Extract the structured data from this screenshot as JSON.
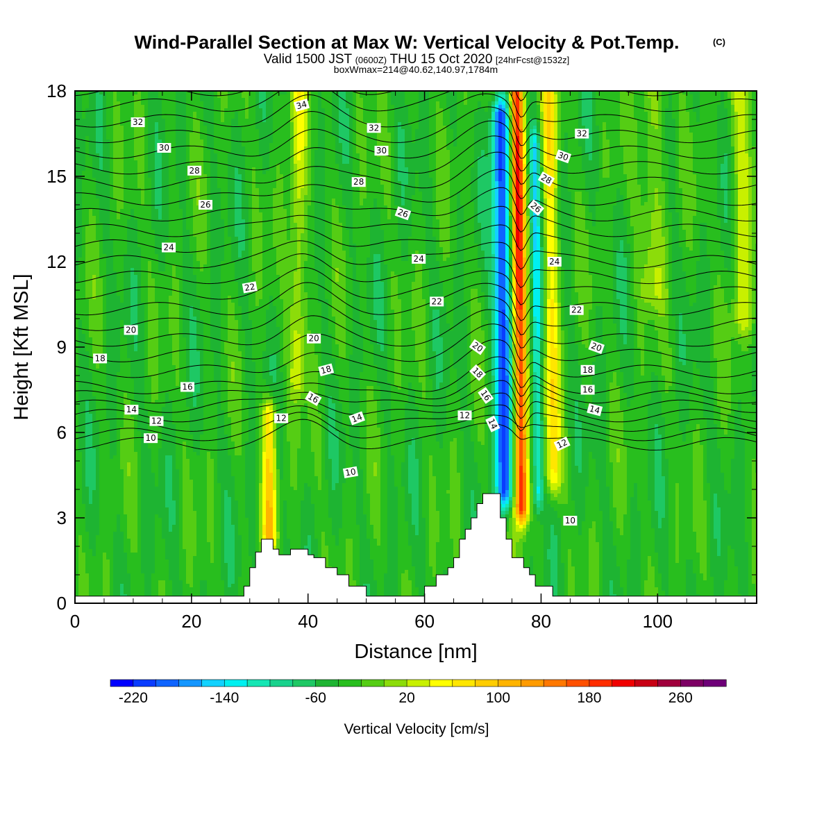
{
  "title": {
    "main": "Wind-Parallel Section at Max W: Vertical Velocity & Pot.Temp.",
    "copyright": "(C)",
    "line2_a": "Valid 1500 JST",
    "line2_b": "(0600Z)",
    "line2_c": "THU 15 Oct 2020",
    "line2_d": "[24hrFcst@1532z]",
    "line3": "boxWmax=214@40.62,140.97,1784m"
  },
  "chart_data": {
    "type": "heatmap",
    "xlabel": "Distance [nm]",
    "ylabel": "Height [Kft MSL]",
    "xlim": [
      0,
      117
    ],
    "ylim": [
      0,
      18
    ],
    "x_ticks": [
      0,
      20,
      40,
      60,
      80,
      100
    ],
    "y_ticks": [
      0,
      3,
      6,
      9,
      12,
      15,
      18
    ],
    "fill_field": "Vertical Velocity [cm/s]",
    "contour_field": "Potential Temperature",
    "colorbar": {
      "title": "Vertical Velocity [cm/s]",
      "tick_values": [
        -220,
        -140,
        -60,
        20,
        100,
        180,
        260
      ],
      "levels": [
        -240,
        -220,
        -200,
        -180,
        -160,
        -140,
        -120,
        -100,
        -80,
        -60,
        -40,
        -20,
        0,
        20,
        40,
        60,
        80,
        100,
        120,
        140,
        160,
        180,
        200,
        220,
        240,
        260,
        280,
        300
      ],
      "colors": [
        "#0000ff",
        "#0a3cff",
        "#0f64ff",
        "#1496ff",
        "#12d2ff",
        "#00f0f0",
        "#15e6b4",
        "#18d28c",
        "#1ec864",
        "#1eb432",
        "#28be1e",
        "#55cd14",
        "#8cdc0a",
        "#c8f000",
        "#ffff00",
        "#ffe600",
        "#ffcd00",
        "#ffb400",
        "#ff9b00",
        "#ff7800",
        "#ff5000",
        "#ff2d00",
        "#f00000",
        "#c80014",
        "#a0003c",
        "#7d0064",
        "#6e0078"
      ]
    },
    "background_value": -35,
    "features": [
      {
        "type": "updraft",
        "x": 76.3,
        "width": 0.8,
        "y_from": 3.5,
        "y_to": 18,
        "peak": 234
      },
      {
        "type": "downdraft",
        "x": 73.4,
        "width": 1.0,
        "y_from": 4.0,
        "y_to": 17,
        "peak": -180
      },
      {
        "type": "updraft",
        "x": 81.8,
        "width": 0.9,
        "y_from": 4.5,
        "y_to": 18,
        "peak": 100
      },
      {
        "type": "downdraft",
        "x": 79.2,
        "width": 0.6,
        "y_from": 4.0,
        "y_to": 16,
        "peak": -100
      },
      {
        "type": "updraft",
        "x": 38.3,
        "width": 1.0,
        "y_from": 8,
        "y_to": 18,
        "peak": 70
      },
      {
        "type": "updraft",
        "x": 33.4,
        "width": 0.9,
        "y_from": 2.5,
        "y_to": 6.5,
        "peak": 120
      },
      {
        "type": "updraft",
        "x": 99.1,
        "width": 1.6,
        "y_from": 11,
        "y_to": 18,
        "peak": 45
      },
      {
        "type": "updraft",
        "x": 114.7,
        "width": 1.3,
        "y_from": 10,
        "y_to": 18,
        "peak": 60
      }
    ],
    "terrain": [
      [
        0,
        0.25
      ],
      [
        29,
        0.25
      ],
      [
        29,
        0.6
      ],
      [
        30,
        0.6
      ],
      [
        30,
        1.25
      ],
      [
        31,
        1.25
      ],
      [
        31,
        1.8
      ],
      [
        32,
        1.8
      ],
      [
        32,
        2.25
      ],
      [
        34,
        2.25
      ],
      [
        34,
        1.9
      ],
      [
        35,
        1.9
      ],
      [
        35,
        1.7
      ],
      [
        37,
        1.7
      ],
      [
        37,
        1.9
      ],
      [
        40,
        1.9
      ],
      [
        40,
        1.7
      ],
      [
        41,
        1.7
      ],
      [
        41,
        1.6
      ],
      [
        43,
        1.6
      ],
      [
        43,
        1.25
      ],
      [
        45,
        1.25
      ],
      [
        45,
        1.0
      ],
      [
        47,
        1.0
      ],
      [
        47,
        0.6
      ],
      [
        50,
        0.6
      ],
      [
        50,
        0.25
      ],
      [
        60,
        0.25
      ],
      [
        60,
        0.6
      ],
      [
        62,
        0.6
      ],
      [
        62,
        1.0
      ],
      [
        64,
        1.0
      ],
      [
        64,
        1.25
      ],
      [
        65,
        1.25
      ],
      [
        65,
        1.6
      ],
      [
        66,
        1.6
      ],
      [
        66,
        2.25
      ],
      [
        67,
        2.25
      ],
      [
        67,
        2.6
      ],
      [
        68,
        2.6
      ],
      [
        68,
        3.0
      ],
      [
        69,
        3.0
      ],
      [
        69,
        3.5
      ],
      [
        70,
        3.5
      ],
      [
        70,
        3.85
      ],
      [
        73,
        3.85
      ],
      [
        73,
        3.0
      ],
      [
        74,
        3.0
      ],
      [
        74,
        2.25
      ],
      [
        75,
        2.25
      ],
      [
        75,
        1.6
      ],
      [
        77,
        1.6
      ],
      [
        77,
        1.25
      ],
      [
        78,
        1.25
      ],
      [
        78,
        1.0
      ],
      [
        79,
        1.0
      ],
      [
        79,
        0.6
      ],
      [
        82,
        0.6
      ],
      [
        82,
        0.25
      ],
      [
        117,
        0.25
      ]
    ],
    "theta_contours": {
      "levels": [
        10,
        11,
        12,
        13,
        14,
        15,
        16,
        17,
        18,
        19,
        20,
        21,
        22,
        23,
        24,
        25,
        26,
        27,
        28,
        29,
        30,
        31,
        32,
        33,
        34,
        35
      ],
      "labeled_levels": [
        10,
        12,
        14,
        16,
        18,
        20,
        22,
        24,
        26,
        28,
        30,
        32,
        34
      ]
    },
    "contour_labels": [
      {
        "text": "34",
        "x": 38.9,
        "y": 17.5,
        "rot": -15
      },
      {
        "text": "32",
        "x": 10.8,
        "y": 16.9,
        "rot": 0
      },
      {
        "text": "30",
        "x": 15.3,
        "y": 16.0,
        "rot": 0
      },
      {
        "text": "28",
        "x": 20.5,
        "y": 15.2,
        "rot": 0
      },
      {
        "text": "26",
        "x": 22.4,
        "y": 14.0,
        "rot": 0
      },
      {
        "text": "24",
        "x": 16.1,
        "y": 12.5,
        "rot": 0
      },
      {
        "text": "22",
        "x": 30.0,
        "y": 11.1,
        "rot": -10
      },
      {
        "text": "20",
        "x": 9.6,
        "y": 9.6,
        "rot": 0
      },
      {
        "text": "18",
        "x": 4.3,
        "y": 8.6,
        "rot": 0
      },
      {
        "text": "16",
        "x": 19.3,
        "y": 7.6,
        "rot": 0
      },
      {
        "text": "14",
        "x": 9.7,
        "y": 6.8,
        "rot": 0
      },
      {
        "text": "12",
        "x": 14.0,
        "y": 6.4,
        "rot": 0
      },
      {
        "text": "10",
        "x": 13.0,
        "y": 5.8,
        "rot": 0
      },
      {
        "text": "32",
        "x": 51.3,
        "y": 16.7,
        "rot": 0
      },
      {
        "text": "30",
        "x": 52.6,
        "y": 15.9,
        "rot": 0
      },
      {
        "text": "28",
        "x": 48.7,
        "y": 14.8,
        "rot": 0
      },
      {
        "text": "26",
        "x": 56.3,
        "y": 13.7,
        "rot": 20
      },
      {
        "text": "24",
        "x": 59.0,
        "y": 12.1,
        "rot": 0
      },
      {
        "text": "22",
        "x": 62.1,
        "y": 10.6,
        "rot": 0
      },
      {
        "text": "20",
        "x": 41.0,
        "y": 9.3,
        "rot": 0
      },
      {
        "text": "18",
        "x": 43.1,
        "y": 8.2,
        "rot": -15
      },
      {
        "text": "16",
        "x": 40.9,
        "y": 7.2,
        "rot": 30
      },
      {
        "text": "14",
        "x": 48.4,
        "y": 6.5,
        "rot": -20
      },
      {
        "text": "12",
        "x": 35.4,
        "y": 6.5,
        "rot": 0
      },
      {
        "text": "12",
        "x": 66.9,
        "y": 6.6,
        "rot": 0
      },
      {
        "text": "10",
        "x": 47.3,
        "y": 4.6,
        "rot": -10
      },
      {
        "text": "20",
        "x": 69.1,
        "y": 9.0,
        "rot": 35
      },
      {
        "text": "18",
        "x": 69.1,
        "y": 8.1,
        "rot": 45
      },
      {
        "text": "16",
        "x": 70.5,
        "y": 7.3,
        "rot": 55
      },
      {
        "text": "14",
        "x": 71.7,
        "y": 6.3,
        "rot": 65
      },
      {
        "text": "32",
        "x": 87.0,
        "y": 16.5,
        "rot": 0
      },
      {
        "text": "30",
        "x": 83.8,
        "y": 15.7,
        "rot": 20
      },
      {
        "text": "28",
        "x": 80.9,
        "y": 14.9,
        "rot": 30
      },
      {
        "text": "26",
        "x": 79.1,
        "y": 13.9,
        "rot": 40
      },
      {
        "text": "24",
        "x": 82.3,
        "y": 12.0,
        "rot": 0
      },
      {
        "text": "22",
        "x": 86.1,
        "y": 10.3,
        "rot": 0
      },
      {
        "text": "20",
        "x": 89.5,
        "y": 9.0,
        "rot": 20
      },
      {
        "text": "18",
        "x": 88.0,
        "y": 8.2,
        "rot": 0
      },
      {
        "text": "16",
        "x": 88.0,
        "y": 7.5,
        "rot": 0
      },
      {
        "text": "14",
        "x": 89.2,
        "y": 6.8,
        "rot": 15
      },
      {
        "text": "12",
        "x": 83.6,
        "y": 5.6,
        "rot": -25
      },
      {
        "text": "10",
        "x": 85.0,
        "y": 2.9,
        "rot": 0
      }
    ]
  }
}
